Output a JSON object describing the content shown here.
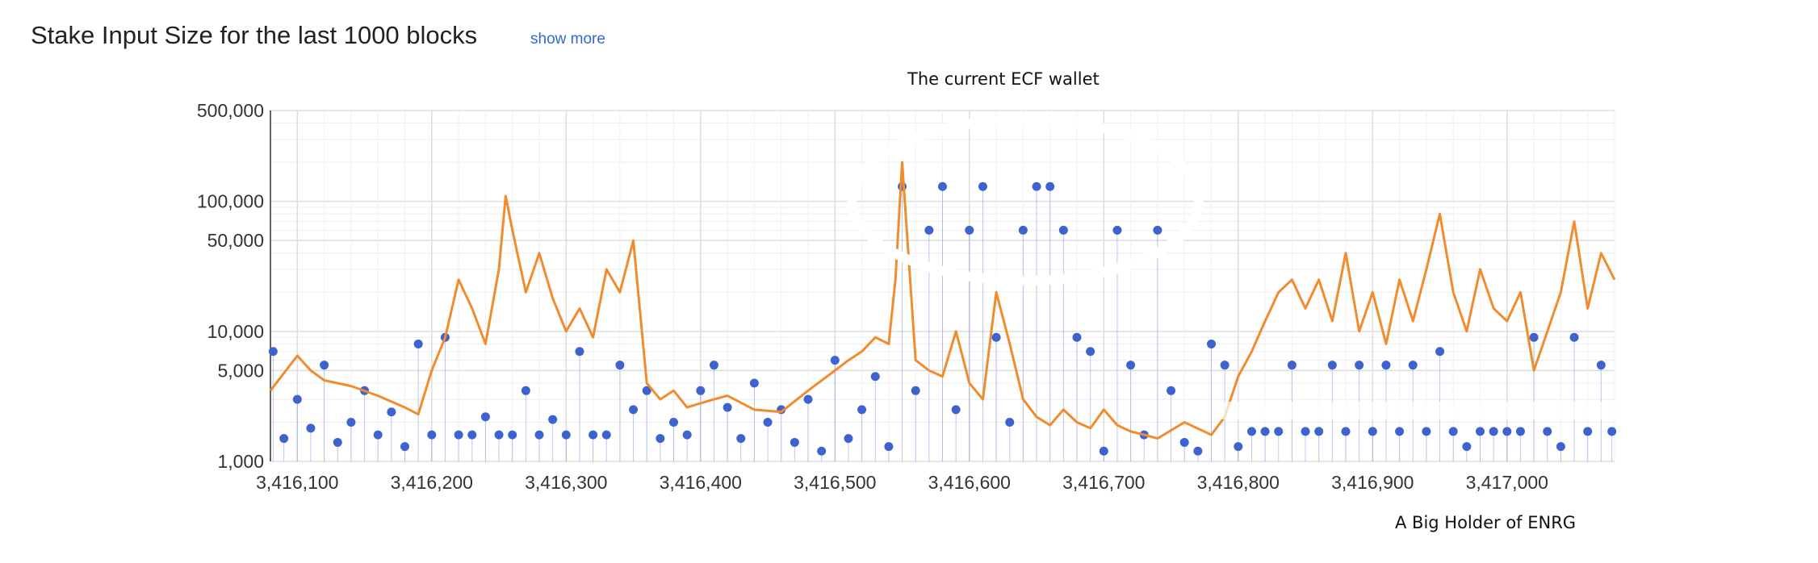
{
  "header": {
    "title": "Stake Input Size for the last 1000 blocks",
    "show_more_label": "show more"
  },
  "annotations": {
    "ecf_wallet": "The current ECF wallet",
    "big_holder": "A Big Holder of ENRG"
  },
  "colors": {
    "orange_series": "#f08c2e",
    "blue_series": "#3e63cf",
    "grid": "#dddddd",
    "text": "#333333"
  },
  "chart_data": {
    "type": "line",
    "title": "Stake Input Size for the last 1000 blocks",
    "xlabel": "",
    "ylabel": "",
    "yscale": "log",
    "xlim": [
      3416080,
      3417080
    ],
    "ylim": [
      1000,
      500000
    ],
    "x_ticks": [
      3416100,
      3416200,
      3416300,
      3416400,
      3416500,
      3416600,
      3416700,
      3416800,
      3416900,
      3417000
    ],
    "x_tick_labels": [
      "3,416,100",
      "3,416,200",
      "3,416,300",
      "3,416,400",
      "3,416,500",
      "3,416,600",
      "3,416,700",
      "3,416,800",
      "3,416,900",
      "3,417,000"
    ],
    "y_ticks": [
      1000,
      5000,
      10000,
      50000,
      100000,
      500000
    ],
    "y_tick_labels": [
      "1,000",
      "5,000",
      "10,000",
      "50,000",
      "100,000",
      "500,000"
    ],
    "grid": true,
    "legend": "none",
    "series": [
      {
        "style": "line",
        "color": "#f08c2e",
        "x": [
          3416080,
          3416100,
          3416110,
          3416120,
          3416140,
          3416160,
          3416180,
          3416190,
          3416200,
          3416210,
          3416220,
          3416230,
          3416240,
          3416250,
          3416255,
          3416260,
          3416270,
          3416280,
          3416290,
          3416300,
          3416310,
          3416320,
          3416330,
          3416340,
          3416350,
          3416360,
          3416370,
          3416380,
          3416390,
          3416400,
          3416410,
          3416420,
          3416440,
          3416460,
          3416480,
          3416500,
          3416510,
          3416520,
          3416530,
          3416540,
          3416545,
          3416550,
          3416560,
          3416570,
          3416580,
          3416590,
          3416600,
          3416610,
          3416620,
          3416630,
          3416640,
          3416650,
          3416660,
          3416670,
          3416680,
          3416690,
          3416700,
          3416710,
          3416720,
          3416730,
          3416740,
          3416760,
          3416780,
          3416790,
          3416800,
          3416810,
          3416820,
          3416830,
          3416840,
          3416850,
          3416860,
          3416870,
          3416880,
          3416890,
          3416900,
          3416910,
          3416920,
          3416930,
          3416940,
          3416950,
          3416960,
          3416970,
          3416980,
          3416990,
          3417000,
          3417010,
          3417020,
          3417030,
          3417040,
          3417050,
          3417060,
          3417070,
          3417080
        ],
        "y": [
          3500,
          6500,
          5000,
          4200,
          3800,
          3200,
          2600,
          2300,
          5000,
          9000,
          25000,
          15000,
          8000,
          30000,
          110000,
          60000,
          20000,
          40000,
          18000,
          10000,
          15000,
          9000,
          30000,
          20000,
          50000,
          4000,
          3000,
          3500,
          2600,
          2800,
          3000,
          3200,
          2500,
          2400,
          3500,
          5000,
          6000,
          7000,
          9000,
          8000,
          25000,
          200000,
          6000,
          5000,
          4500,
          10000,
          4000,
          3000,
          20000,
          8000,
          3000,
          2200,
          1900,
          2500,
          2000,
          1800,
          2500,
          1900,
          1700,
          1600,
          1500,
          2000,
          1600,
          2200,
          4500,
          7000,
          12000,
          20000,
          25000,
          15000,
          25000,
          12000,
          40000,
          10000,
          20000,
          8000,
          25000,
          12000,
          30000,
          80000,
          20000,
          10000,
          30000,
          15000,
          12000,
          20000,
          5000,
          10000,
          20000,
          70000,
          15000,
          40000,
          25000
        ]
      },
      {
        "style": "points",
        "color": "#3e63cf",
        "x": [
          3416082,
          3416090,
          3416100,
          3416110,
          3416120,
          3416130,
          3416140,
          3416150,
          3416160,
          3416170,
          3416180,
          3416190,
          3416200,
          3416210,
          3416220,
          3416230,
          3416240,
          3416250,
          3416260,
          3416270,
          3416280,
          3416290,
          3416300,
          3416310,
          3416320,
          3416330,
          3416340,
          3416350,
          3416360,
          3416370,
          3416380,
          3416390,
          3416400,
          3416410,
          3416420,
          3416430,
          3416440,
          3416450,
          3416460,
          3416470,
          3416480,
          3416490,
          3416500,
          3416510,
          3416520,
          3416530,
          3416540,
          3416550,
          3416560,
          3416570,
          3416580,
          3416590,
          3416600,
          3416610,
          3416620,
          3416630,
          3416640,
          3416650,
          3416660,
          3416670,
          3416680,
          3416690,
          3416700,
          3416710,
          3416720,
          3416730,
          3416740,
          3416750,
          3416760,
          3416770,
          3416780,
          3416790,
          3416800,
          3416810,
          3416820,
          3416830,
          3416840,
          3416850,
          3416860,
          3416870,
          3416880,
          3416890,
          3416900,
          3416910,
          3416920,
          3416930,
          3416940,
          3416950,
          3416960,
          3416970,
          3416980,
          3416990,
          3417000,
          3417010,
          3417020,
          3417030,
          3417040,
          3417050,
          3417060,
          3417070,
          3417078
        ],
        "y": [
          7000,
          1500,
          3000,
          1800,
          5500,
          1400,
          2000,
          3500,
          1600,
          2400,
          1300,
          8000,
          1600,
          9000,
          1600,
          1600,
          2200,
          1600,
          1600,
          3500,
          1600,
          2100,
          1600,
          7000,
          1600,
          1600,
          5500,
          2500,
          3500,
          1500,
          2000,
          1600,
          3500,
          5500,
          2600,
          1500,
          4000,
          2000,
          2500,
          1400,
          3000,
          1200,
          6000,
          1500,
          2500,
          4500,
          1300,
          130000,
          3500,
          60000,
          130000,
          2500,
          60000,
          130000,
          9000,
          2000,
          60000,
          130000,
          130000,
          60000,
          9000,
          7000,
          1200,
          60000,
          5500,
          1600,
          60000,
          3500,
          1400,
          1200,
          8000,
          5500,
          1300,
          1700,
          1700,
          1700,
          5500,
          1700,
          1700,
          5500,
          1700,
          5500,
          1700,
          5500,
          1700,
          5500,
          1700,
          7000,
          1700,
          1300,
          1700,
          1700,
          1700,
          1700,
          9000,
          1700,
          1300,
          9000,
          1700,
          5500,
          1700
        ]
      }
    ]
  }
}
